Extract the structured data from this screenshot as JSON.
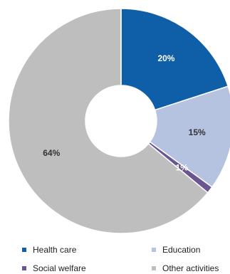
{
  "chart_data": {
    "type": "pie",
    "donut": true,
    "title": "",
    "slices": [
      {
        "name": "Health care",
        "value": 20,
        "label": "20%",
        "color": "#0f5fa8"
      },
      {
        "name": "Education",
        "value": 15,
        "label": "15%",
        "color": "#b5c3e0"
      },
      {
        "name": "Social welfare",
        "value": 1,
        "label": "1%",
        "color": "#6b5591"
      },
      {
        "name": "Other activities",
        "value": 64,
        "label": "64%",
        "color": "#bebebe"
      }
    ],
    "legend": {
      "position": "bottom"
    }
  }
}
